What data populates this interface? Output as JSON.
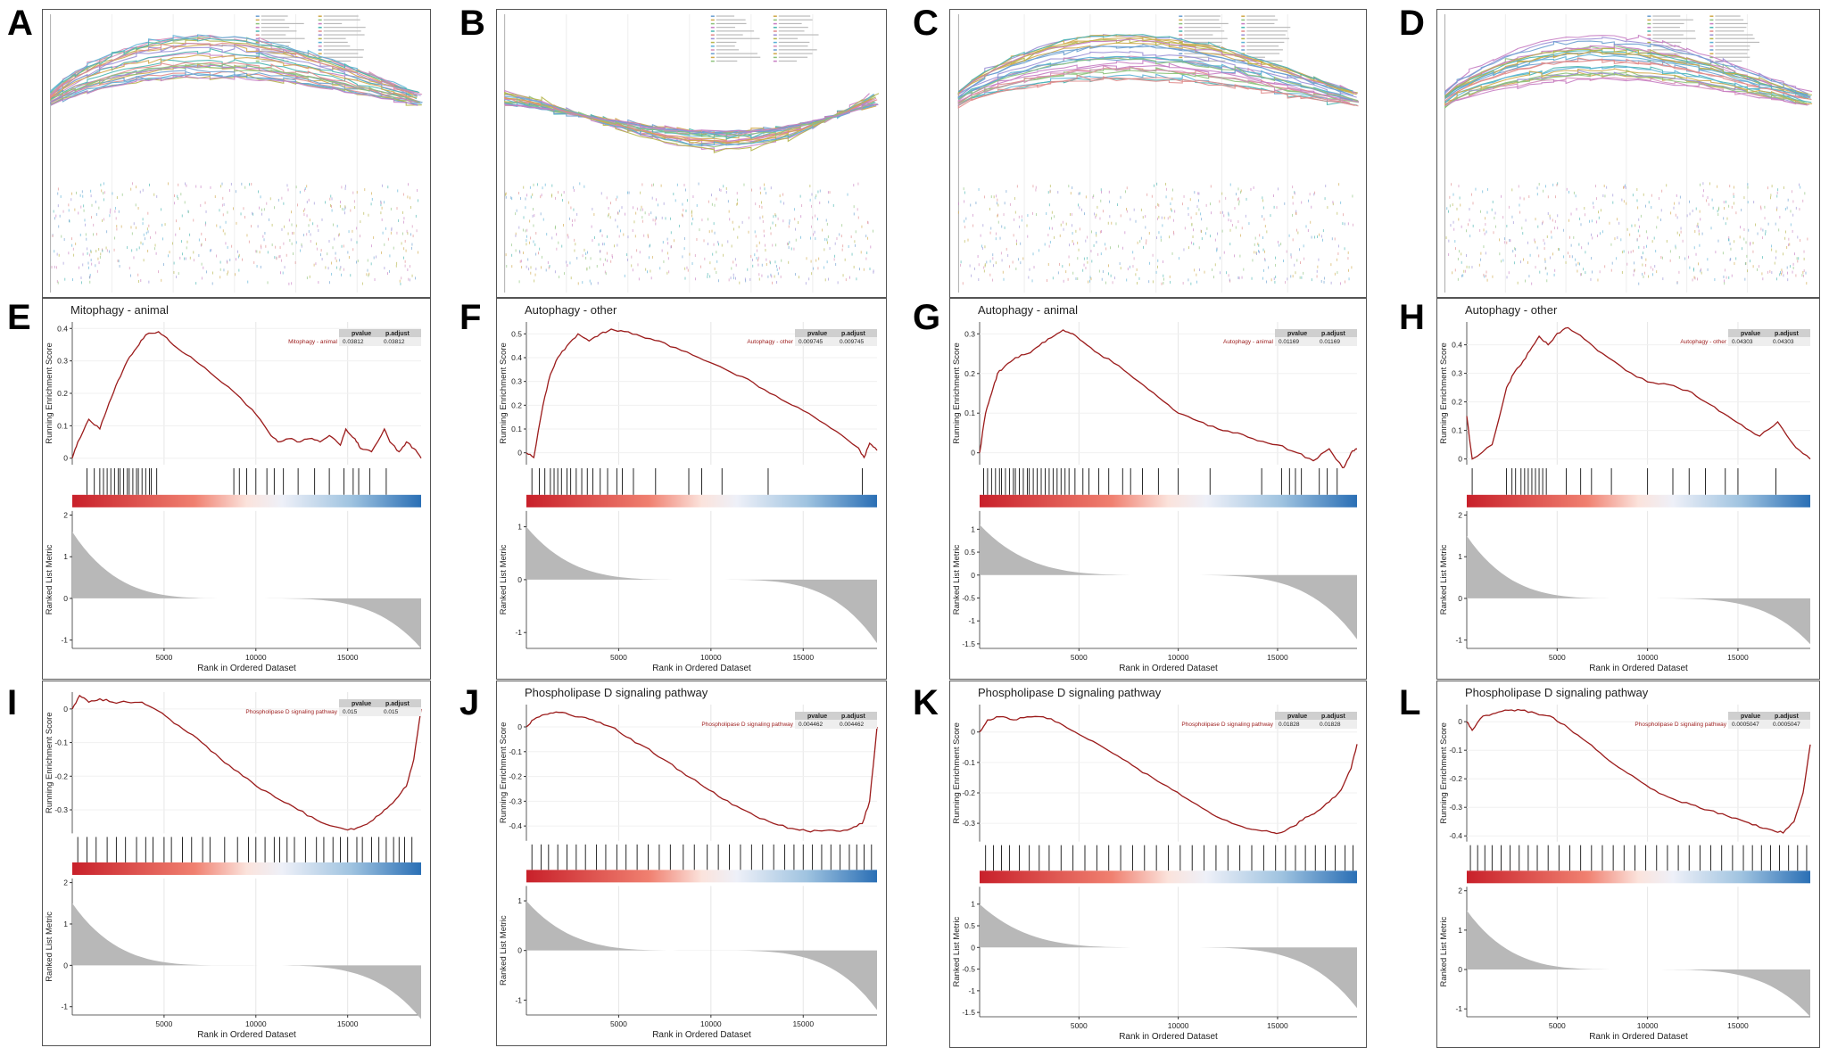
{
  "labels": [
    "A",
    "B",
    "C",
    "D",
    "E",
    "F",
    "G",
    "H",
    "I",
    "J",
    "K",
    "L"
  ],
  "colors": {
    "curve": "#9b1b1b",
    "bar_red": "#c8202a",
    "bar_blue": "#2a6fb5",
    "metric_fill": "#b8b8b8",
    "multi_curves": [
      "#6a9ed0",
      "#d0a84a",
      "#8cc27a",
      "#c77dc3",
      "#47b5b0",
      "#e08a8a",
      "#9a8fd6",
      "#b5b54a",
      "#5ab0d6",
      "#d48bb8"
    ]
  },
  "common": {
    "ylabel_top": "Running Enrichment Score",
    "ylabel_bottom": "Ranked List Metric",
    "xlabel": "Rank in Ordered Dataset",
    "x_ticks": [
      5000,
      10000,
      15000
    ],
    "x_range": [
      0,
      19000
    ],
    "stat_headers": [
      "pvalue",
      "p.adjust"
    ]
  },
  "chart_data": [
    {
      "panel": "A",
      "type": "line",
      "multi": true,
      "direction": "up",
      "n_curves": 26
    },
    {
      "panel": "B",
      "type": "line",
      "multi": true,
      "direction": "down",
      "n_curves": 24
    },
    {
      "panel": "C",
      "type": "line",
      "multi": true,
      "direction": "up",
      "n_curves": 26
    },
    {
      "panel": "D",
      "type": "line",
      "multi": true,
      "direction": "up",
      "n_curves": 24
    },
    {
      "panel": "E",
      "type": "line",
      "title": "Mitophagy - animal",
      "term": "Mitophagy - animal",
      "pvalue": "0.03812",
      "padjust": "0.03812",
      "y_ticks": [
        0,
        0.1,
        0.2,
        0.3,
        0.4
      ],
      "ylim": [
        -0.02,
        0.42
      ],
      "x": [
        0,
        300,
        900,
        1500,
        2000,
        2500,
        3000,
        3500,
        4000,
        4700,
        5300,
        6200,
        7200,
        8500,
        9800,
        10700,
        11200,
        11800,
        12400,
        12900,
        13500,
        14000,
        14600,
        14900,
        15400,
        15700,
        16300,
        17000,
        17300,
        17800,
        18200,
        18600,
        19000
      ],
      "y": [
        0,
        0.05,
        0.12,
        0.09,
        0.17,
        0.24,
        0.3,
        0.34,
        0.38,
        0.39,
        0.36,
        0.32,
        0.28,
        0.22,
        0.15,
        0.08,
        0.05,
        0.06,
        0.05,
        0.06,
        0.05,
        0.07,
        0.04,
        0.09,
        0.06,
        0.03,
        0.02,
        0.09,
        0.05,
        0.02,
        0.05,
        0.03,
        0
      ],
      "metric_ticks": [
        -1,
        0,
        1,
        2
      ],
      "metric_ylim": [
        -1.2,
        2.1
      ],
      "metric_start": 1.6,
      "metric_end": -1.2,
      "hits": [
        800,
        1200,
        1500,
        1700,
        1900,
        2100,
        2300,
        2500,
        2600,
        2800,
        3000,
        3100,
        3300,
        3500,
        3600,
        3800,
        4000,
        4200,
        4300,
        4600,
        8800,
        9100,
        9500,
        10000,
        10600,
        11000,
        11500,
        12300,
        13200,
        14000,
        14800,
        15300,
        15600,
        16200,
        17100
      ]
    },
    {
      "panel": "F",
      "type": "line",
      "title": "Autophagy - other",
      "term": "Autophagy - other",
      "pvalue": "0.009745",
      "padjust": "0.009745",
      "y_ticks": [
        0,
        0.1,
        0.2,
        0.3,
        0.4,
        0.5
      ],
      "ylim": [
        -0.05,
        0.55
      ],
      "x": [
        0,
        400,
        900,
        1300,
        1700,
        2200,
        2800,
        3400,
        4000,
        4600,
        5300,
        6200,
        7200,
        8400,
        9600,
        10800,
        12000,
        13200,
        14400,
        15600,
        16800,
        18000,
        18300,
        18600,
        19000
      ],
      "y": [
        0,
        -0.02,
        0.2,
        0.33,
        0.4,
        0.45,
        0.5,
        0.47,
        0.5,
        0.52,
        0.51,
        0.49,
        0.47,
        0.43,
        0.39,
        0.35,
        0.31,
        0.25,
        0.2,
        0.15,
        0.09,
        0.02,
        -0.02,
        0.04,
        0.01
      ],
      "metric_ticks": [
        -1,
        0,
        1
      ],
      "metric_ylim": [
        -1.3,
        1.3
      ],
      "metric_start": 1.0,
      "metric_end": -1.2,
      "hits": [
        300,
        700,
        1000,
        1300,
        1500,
        1700,
        1900,
        2200,
        2400,
        2700,
        3000,
        3300,
        3600,
        4000,
        4400,
        4900,
        5200,
        5800,
        7000,
        8800,
        9500,
        10600,
        13100,
        18200
      ]
    },
    {
      "panel": "G",
      "type": "line",
      "title": "Autophagy - animal",
      "term": "Autophagy - animal",
      "pvalue": "0.01169",
      "padjust": "0.01169",
      "y_ticks": [
        0,
        0.1,
        0.2,
        0.3
      ],
      "ylim": [
        -0.03,
        0.33
      ],
      "x": [
        0,
        300,
        600,
        900,
        1300,
        1800,
        2400,
        3000,
        3600,
        4200,
        4700,
        5200,
        6000,
        7000,
        8000,
        9000,
        10000,
        11000,
        12000,
        13000,
        14000,
        15000,
        16000,
        16800,
        17600,
        18300,
        18700,
        19000
      ],
      "y": [
        0,
        0.1,
        0.15,
        0.2,
        0.22,
        0.24,
        0.25,
        0.27,
        0.29,
        0.31,
        0.3,
        0.28,
        0.25,
        0.22,
        0.18,
        0.14,
        0.1,
        0.08,
        0.06,
        0.05,
        0.03,
        0.02,
        0.0,
        -0.02,
        0.01,
        -0.04,
        0.0,
        0.01
      ],
      "metric_ticks": [
        -1.5,
        -1,
        -0.5,
        0,
        0.5,
        1
      ],
      "metric_ylim": [
        -1.6,
        1.4
      ],
      "metric_start": 1.1,
      "metric_end": -1.4,
      "hits": [
        200,
        400,
        600,
        800,
        1000,
        1100,
        1300,
        1500,
        1700,
        1800,
        2000,
        2200,
        2400,
        2500,
        2700,
        2900,
        3100,
        3300,
        3500,
        3700,
        3900,
        4100,
        4300,
        4500,
        4800,
        5200,
        5500,
        6000,
        6500,
        7200,
        7600,
        8200,
        9000,
        10000,
        11600,
        14200,
        15200,
        15600,
        15900,
        16200,
        17100,
        17500,
        18000
      ]
    },
    {
      "panel": "H",
      "type": "line",
      "title": "Autophagy - other",
      "term": "Autophagy - other",
      "pvalue": "0.04303",
      "padjust": "0.04303",
      "y_ticks": [
        0,
        0.1,
        0.2,
        0.3,
        0.4
      ],
      "ylim": [
        -0.02,
        0.48
      ],
      "x": [
        0,
        300,
        1400,
        2200,
        2600,
        3000,
        3500,
        4000,
        4500,
        5000,
        5600,
        6500,
        7500,
        8800,
        10000,
        11200,
        12200,
        13200,
        14200,
        15200,
        16200,
        17200,
        18200,
        19000
      ],
      "y": [
        0.15,
        0.0,
        0.05,
        0.25,
        0.3,
        0.33,
        0.38,
        0.43,
        0.4,
        0.44,
        0.46,
        0.42,
        0.37,
        0.31,
        0.27,
        0.26,
        0.24,
        0.2,
        0.16,
        0.12,
        0.08,
        0.13,
        0.04,
        0.0
      ],
      "metric_ticks": [
        -1,
        0,
        1,
        2
      ],
      "metric_ylim": [
        -1.2,
        2.1
      ],
      "metric_start": 1.5,
      "metric_end": -1.1,
      "hits": [
        300,
        2200,
        2500,
        2700,
        3000,
        3200,
        3400,
        3600,
        3800,
        4000,
        4200,
        4400,
        5500,
        6300,
        6900,
        8000,
        10000,
        11400,
        12300,
        13200,
        14300,
        15000,
        17100
      ]
    },
    {
      "panel": "I",
      "type": "line",
      "title": "",
      "term": "Phospholipase D signaling pathway",
      "pvalue": "0.015",
      "padjust": "0.015",
      "y_ticks": [
        -0.3,
        -0.2,
        -0.1,
        0
      ],
      "ylim": [
        -0.37,
        0.05
      ],
      "x": [
        0,
        400,
        900,
        1500,
        2200,
        3000,
        3800,
        4500,
        5300,
        6300,
        7300,
        8300,
        9300,
        10300,
        11300,
        12300,
        13300,
        14300,
        15000,
        15700,
        16400,
        17000,
        17600,
        18200,
        18600,
        19000
      ],
      "y": [
        0,
        0.04,
        0.02,
        0.03,
        0.02,
        0.02,
        0.02,
        0.0,
        -0.03,
        -0.07,
        -0.11,
        -0.16,
        -0.2,
        -0.24,
        -0.27,
        -0.3,
        -0.33,
        -0.35,
        -0.36,
        -0.35,
        -0.33,
        -0.3,
        -0.27,
        -0.23,
        -0.15,
        0.0
      ],
      "metric_ticks": [
        -1,
        0,
        1,
        2
      ],
      "metric_ylim": [
        -1.2,
        2.1
      ],
      "metric_start": 1.5,
      "metric_end": -1.3,
      "hits": [
        300,
        800,
        1300,
        1900,
        2400,
        2900,
        3500,
        4000,
        4400,
        5000,
        5400,
        6000,
        6500,
        7100,
        7500,
        8300,
        9000,
        9600,
        10000,
        10500,
        11000,
        11300,
        11700,
        12100,
        12700,
        13300,
        13700,
        14200,
        14600,
        15000,
        15500,
        15800,
        16300,
        16700,
        17100,
        17500,
        17800,
        18100,
        18500
      ]
    },
    {
      "panel": "J",
      "type": "line",
      "title": "Phospholipase D signaling pathway",
      "term": "Phospholipase D signaling pathway",
      "pvalue": "0.004462",
      "padjust": "0.004462",
      "y_ticks": [
        -0.4,
        -0.3,
        -0.2,
        -0.1,
        0
      ],
      "ylim": [
        -0.46,
        0.09
      ],
      "x": [
        0,
        400,
        1000,
        1600,
        2300,
        3000,
        3800,
        4600,
        5400,
        6400,
        7400,
        8400,
        9400,
        10400,
        11400,
        12400,
        13400,
        14400,
        15200,
        16000,
        16800,
        17600,
        18200,
        18600,
        19000
      ],
      "y": [
        0,
        0.03,
        0.05,
        0.06,
        0.05,
        0.04,
        0.02,
        0.0,
        -0.04,
        -0.08,
        -0.13,
        -0.18,
        -0.23,
        -0.28,
        -0.32,
        -0.36,
        -0.39,
        -0.41,
        -0.42,
        -0.42,
        -0.42,
        -0.41,
        -0.39,
        -0.3,
        0.0
      ],
      "metric_ticks": [
        -1,
        0,
        1
      ],
      "metric_ylim": [
        -1.3,
        1.3
      ],
      "metric_start": 1.0,
      "metric_end": -1.2,
      "hits": [
        300,
        800,
        1200,
        1700,
        2200,
        2700,
        3200,
        3800,
        4300,
        4900,
        5400,
        6000,
        6600,
        7200,
        7800,
        8500,
        9100,
        9800,
        10400,
        11000,
        11600,
        12200,
        12800,
        13400,
        14000,
        14500,
        15000,
        15500,
        16000,
        16500,
        17000,
        17500,
        17900,
        18300,
        18700
      ]
    },
    {
      "panel": "K",
      "type": "line",
      "title": "Phospholipase D signaling pathway",
      "term": "Phospholipase D signaling pathway",
      "pvalue": "0.01828",
      "padjust": "0.01828",
      "y_ticks": [
        -0.3,
        -0.2,
        -0.1,
        0
      ],
      "ylim": [
        -0.36,
        0.09
      ],
      "x": [
        0,
        400,
        1000,
        1700,
        2400,
        3200,
        4000,
        4800,
        5700,
        6700,
        7700,
        8700,
        9700,
        10700,
        11700,
        12700,
        13700,
        14700,
        15200,
        15800,
        16400,
        17000,
        17600,
        18200,
        18700,
        19000
      ],
      "y": [
        0,
        0.04,
        0.05,
        0.04,
        0.05,
        0.05,
        0.03,
        0.0,
        -0.03,
        -0.07,
        -0.11,
        -0.15,
        -0.19,
        -0.23,
        -0.27,
        -0.3,
        -0.32,
        -0.33,
        -0.33,
        -0.31,
        -0.28,
        -0.26,
        -0.23,
        -0.19,
        -0.12,
        -0.04
      ],
      "metric_ticks": [
        -1.5,
        -1,
        -0.5,
        0,
        0.5,
        1
      ],
      "metric_ylim": [
        -1.6,
        1.4
      ],
      "metric_start": 1.0,
      "metric_end": -1.4,
      "hits": [
        300,
        700,
        1100,
        1500,
        2000,
        2500,
        3000,
        3500,
        4100,
        4700,
        5300,
        5900,
        6500,
        7100,
        7700,
        8300,
        8900,
        9500,
        10100,
        10700,
        11300,
        11900,
        12500,
        13100,
        13700,
        14300,
        14900,
        15400,
        15900,
        16400,
        16900,
        17400,
        17900,
        18400,
        18800
      ]
    },
    {
      "panel": "L",
      "type": "line",
      "title": "Phospholipase D signaling pathway",
      "term": "Phospholipase D signaling pathway",
      "pvalue": "0.0005047",
      "padjust": "0.0005047",
      "y_ticks": [
        -0.4,
        -0.3,
        -0.2,
        -0.1,
        0
      ],
      "ylim": [
        -0.42,
        0.06
      ],
      "x": [
        0,
        300,
        900,
        1600,
        2300,
        3000,
        3800,
        4600,
        5400,
        6400,
        7400,
        8400,
        9400,
        10400,
        11400,
        12400,
        13400,
        14400,
        15400,
        16200,
        16900,
        17500,
        18100,
        18600,
        19000
      ],
      "y": [
        0,
        -0.03,
        0.02,
        0.03,
        0.04,
        0.04,
        0.03,
        0.02,
        -0.01,
        -0.06,
        -0.11,
        -0.16,
        -0.2,
        -0.24,
        -0.27,
        -0.29,
        -0.31,
        -0.33,
        -0.35,
        -0.37,
        -0.38,
        -0.39,
        -0.35,
        -0.25,
        -0.08
      ],
      "metric_ticks": [
        -1,
        0,
        1,
        2
      ],
      "metric_ylim": [
        -1.2,
        2.1
      ],
      "metric_start": 1.5,
      "metric_end": -1.2,
      "hits": [
        200,
        600,
        1000,
        1400,
        1900,
        2400,
        2900,
        3400,
        3900,
        4500,
        5100,
        5700,
        6300,
        6900,
        7500,
        8100,
        8700,
        9300,
        9900,
        10500,
        11100,
        11700,
        12300,
        12900,
        13500,
        14100,
        14700,
        15300,
        15800,
        16300,
        16800,
        17300,
        17800,
        18300,
        18800
      ]
    }
  ]
}
